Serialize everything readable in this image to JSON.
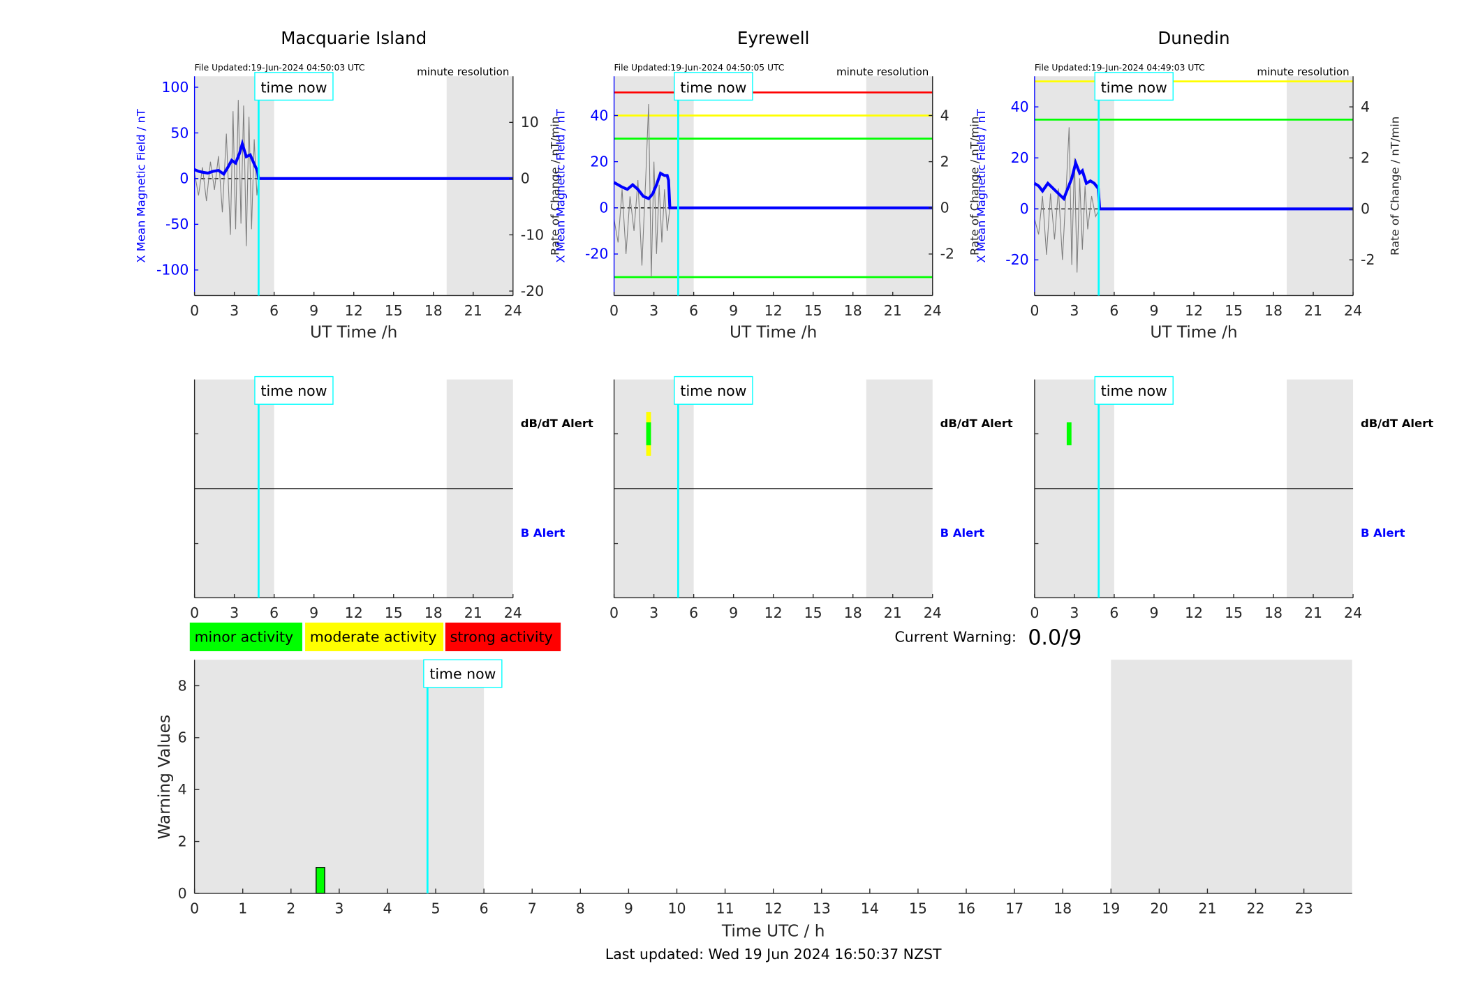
{
  "header": {
    "last_updated": "Last updated: Wed 19 Jun 2024 16:50:37 NZST"
  },
  "legend": {
    "minor": "minor activity",
    "moderate": "moderate activity",
    "strong": "strong activity",
    "colors": {
      "minor": "#00ff00",
      "moderate": "#ffff00",
      "strong": "#ff0000"
    }
  },
  "warning": {
    "label": "Current Warning:",
    "value": "0.0/9"
  },
  "common": {
    "time_now_label": "time now",
    "time_now_hour": 4.83,
    "resolution_label": "minute resolution",
    "night_shading": [
      [
        0,
        6
      ],
      [
        19,
        24
      ]
    ],
    "x_ticks": [
      0,
      3,
      6,
      9,
      12,
      15,
      18,
      21,
      24
    ],
    "xlabel": "UT Time /h",
    "left_ylabel": "X Mean Magnetic Field / nT",
    "right_ylabel": "Rate of Change / nT/min",
    "alert_labels": {
      "dbdt": "dB/dT Alert",
      "b": "B Alert"
    }
  },
  "chart_data": [
    {
      "type": "line",
      "station": "Macquarie Island",
      "file_updated": "File Updated:19-Jun-2024 04:50:03 UTC",
      "xlim": [
        0,
        24
      ],
      "ylim_left": [
        -128,
        112
      ],
      "ylim_right": [
        -20.8,
        18.2
      ],
      "left_ticks": [
        100,
        50,
        0,
        -50,
        -100
      ],
      "right_ticks": [
        10,
        0,
        -10,
        -20
      ],
      "thresholds": [],
      "series": [
        {
          "name": "X Mean Magnetic Field",
          "axis": "left",
          "x": [
            0,
            0.3,
            0.6,
            1.0,
            1.4,
            1.8,
            2.2,
            2.5,
            2.8,
            3.1,
            3.4,
            3.6,
            3.9,
            4.2,
            4.5,
            4.75,
            4.83,
            24
          ],
          "y": [
            10,
            8,
            7,
            6,
            8,
            9,
            5,
            12,
            20,
            17,
            28,
            38,
            24,
            26,
            16,
            8,
            0,
            0
          ]
        },
        {
          "name": "Rate of Change",
          "axis": "right",
          "x": [
            0,
            0.3,
            0.6,
            0.9,
            1.2,
            1.5,
            1.8,
            2.1,
            2.4,
            2.7,
            2.9,
            3.1,
            3.3,
            3.5,
            3.7,
            3.9,
            4.1,
            4.3,
            4.5,
            4.7,
            4.83
          ],
          "y": [
            1,
            -3,
            2,
            -4,
            3,
            -2,
            4,
            -6,
            8,
            -10,
            12,
            -9,
            14,
            -8,
            13,
            -12,
            11,
            -9,
            7,
            -3,
            0
          ]
        }
      ],
      "alerts": {
        "dbdt": [],
        "b": []
      }
    },
    {
      "type": "line",
      "station": "Eyrewell",
      "file_updated": "File Updated:19-Jun-2024 04:50:05 UTC",
      "xlim": [
        0,
        24
      ],
      "ylim_left": [
        -38,
        57
      ],
      "ylim_right": [
        -3.8,
        5.7
      ],
      "left_ticks": [
        40,
        20,
        0,
        -20
      ],
      "right_ticks": [
        4,
        2,
        0,
        -2
      ],
      "thresholds": [
        {
          "value": 50,
          "color": "#ff0000"
        },
        {
          "value": 40,
          "color": "#ffff00"
        },
        {
          "value": 30,
          "color": "#00ff00"
        },
        {
          "value": -30,
          "color": "#00ff00"
        }
      ],
      "series": [
        {
          "name": "X Mean Magnetic Field",
          "axis": "left",
          "x": [
            0,
            0.3,
            0.6,
            1.0,
            1.4,
            1.8,
            2.2,
            2.6,
            2.9,
            3.2,
            3.5,
            3.8,
            4.0,
            4.1,
            4.2,
            24
          ],
          "y": [
            11,
            10,
            9,
            8,
            10,
            8,
            5,
            4,
            6,
            10,
            15,
            14,
            14,
            12,
            0,
            0
          ]
        },
        {
          "name": "Rate of Change",
          "axis": "right",
          "x": [
            0,
            0.3,
            0.6,
            0.9,
            1.2,
            1.5,
            1.8,
            2.1,
            2.4,
            2.6,
            2.8,
            3.0,
            3.2,
            3.4,
            3.6,
            3.8,
            4.0,
            4.2
          ],
          "y": [
            -0.5,
            -1.5,
            0.8,
            -2,
            0.5,
            -1,
            1.2,
            -2.5,
            1.5,
            4.5,
            -3,
            2,
            -2,
            1,
            -1.5,
            0.8,
            -1,
            0
          ]
        }
      ],
      "alerts": {
        "dbdt": [
          {
            "hour": 2.6,
            "level": "moderate"
          },
          {
            "hour": 2.6,
            "level": "minor"
          }
        ],
        "b": []
      }
    },
    {
      "type": "line",
      "station": "Dunedin",
      "file_updated": "File Updated:19-Jun-2024 04:49:03 UTC",
      "xlim": [
        0,
        24
      ],
      "ylim_left": [
        -34,
        52
      ],
      "ylim_right": [
        -3.4,
        5.2
      ],
      "left_ticks": [
        40,
        20,
        0,
        -20
      ],
      "right_ticks": [
        4,
        2,
        0,
        -2
      ],
      "thresholds": [
        {
          "value": 50,
          "color": "#ffff00"
        },
        {
          "value": 35,
          "color": "#00ff00"
        }
      ],
      "series": [
        {
          "name": "X Mean Magnetic Field",
          "axis": "left",
          "x": [
            0,
            0.3,
            0.6,
            1.0,
            1.4,
            1.8,
            2.2,
            2.5,
            2.8,
            3.1,
            3.4,
            3.6,
            3.9,
            4.2,
            4.5,
            4.8,
            4.9,
            24
          ],
          "y": [
            10,
            9,
            7,
            10,
            8,
            6,
            4,
            8,
            12,
            18,
            14,
            15,
            10,
            11,
            10,
            8,
            0,
            0
          ]
        },
        {
          "name": "Rate of Change",
          "axis": "right",
          "x": [
            0,
            0.3,
            0.6,
            0.9,
            1.2,
            1.5,
            1.8,
            2.1,
            2.4,
            2.6,
            2.8,
            3.0,
            3.2,
            3.4,
            3.6,
            3.8,
            4.0,
            4.3,
            4.6,
            4.9
          ],
          "y": [
            -0.4,
            -1,
            0.5,
            -1.8,
            0.6,
            -1.2,
            0.8,
            -2,
            1,
            3.2,
            -2.2,
            2,
            -2.5,
            1.2,
            -1.6,
            0.9,
            -0.8,
            0.5,
            -0.3,
            0
          ]
        }
      ],
      "alerts": {
        "dbdt": [
          {
            "hour": 2.6,
            "level": "minor"
          }
        ],
        "b": []
      }
    },
    {
      "type": "bar",
      "title": "Warning Values",
      "xlabel": "Time UTC / h",
      "ylabel": "Warning Values",
      "xlim": [
        0,
        24
      ],
      "ylim": [
        0,
        9
      ],
      "x_ticks": [
        0,
        1,
        2,
        3,
        4,
        5,
        6,
        7,
        8,
        9,
        10,
        11,
        12,
        13,
        14,
        15,
        16,
        17,
        18,
        19,
        20,
        21,
        22,
        23
      ],
      "y_ticks": [
        0,
        2,
        4,
        6,
        8
      ],
      "night_shading": [
        [
          0,
          6
        ],
        [
          19,
          24
        ]
      ],
      "time_now_hour": 4.83,
      "bars": [
        {
          "hour": 2.6,
          "value": 1,
          "level": "minor"
        }
      ]
    }
  ]
}
